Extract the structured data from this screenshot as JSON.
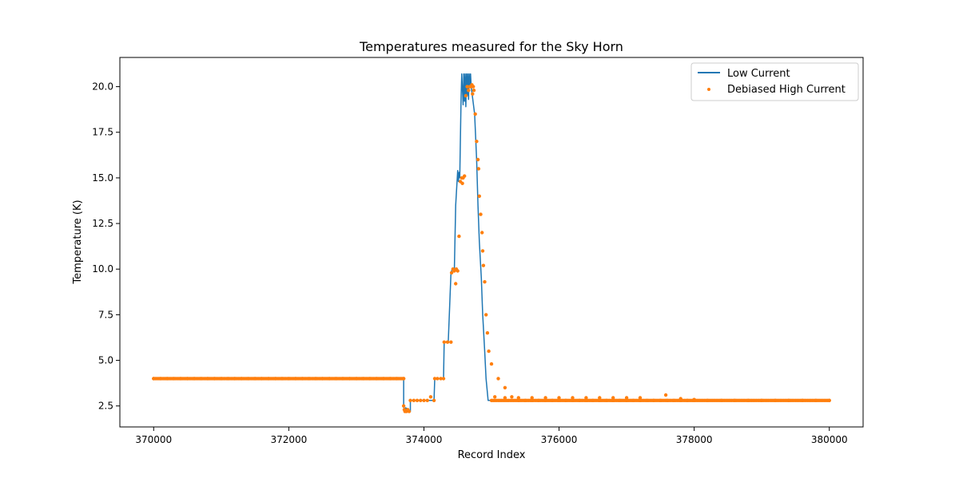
{
  "chart_data": {
    "type": "line",
    "title": "Temperatures measured for the Sky Horn",
    "xlabel": "Record Index",
    "ylabel": "Temperature (K)",
    "xlim": [
      369500,
      380500
    ],
    "ylim": [
      1.35,
      21.6
    ],
    "x_ticks": [
      370000,
      372000,
      374000,
      376000,
      378000,
      380000
    ],
    "x_tick_labels": [
      "370000",
      "372000",
      "374000",
      "376000",
      "378000",
      "380000"
    ],
    "y_ticks": [
      2.5,
      5.0,
      7.5,
      10.0,
      12.5,
      15.0,
      17.5,
      20.0
    ],
    "y_tick_labels": [
      "2.5",
      "5.0",
      "7.5",
      "10.0",
      "12.5",
      "15.0",
      "17.5",
      "20.0"
    ],
    "grid": false,
    "legend_position": "top-right",
    "series": [
      {
        "name": "Low Current",
        "style": "line",
        "color": "#1f77b4",
        "x": [
          370000,
          373700,
          373700,
          373720,
          373730,
          373800,
          373800,
          374000,
          374150,
          374160,
          374290,
          374300,
          374340,
          374360,
          374400,
          374420,
          374450,
          374470,
          374500,
          374510,
          374520,
          374530,
          374550,
          374560,
          374580,
          374590,
          374600,
          374610,
          374620,
          374630,
          374640,
          374650,
          374660,
          374670,
          374680,
          374690,
          374700,
          374700,
          374750,
          374780,
          374800,
          374820,
          374850,
          374870,
          374900,
          374920,
          374950,
          375000,
          376000,
          377000,
          378000,
          379000,
          380000
        ],
        "y": [
          4.0,
          4.0,
          2.5,
          2.2,
          2.4,
          2.2,
          2.8,
          2.8,
          2.8,
          4.0,
          4.0,
          6.0,
          6.0,
          6.0,
          9.8,
          10.0,
          9.9,
          13.5,
          15.4,
          14.8,
          15.3,
          15.0,
          19.5,
          20.7,
          19.0,
          20.7,
          19.2,
          20.7,
          18.9,
          20.7,
          19.5,
          20.7,
          19.3,
          20.7,
          20.0,
          20.7,
          20.0,
          20.0,
          18.5,
          16.0,
          13.5,
          11.5,
          9.5,
          7.5,
          5.5,
          4.0,
          2.8,
          2.8,
          2.8,
          2.8,
          2.8,
          2.8,
          2.8
        ]
      },
      {
        "name": "Debiased High Current",
        "style": "scatter",
        "color": "#ff7f0e",
        "x": [
          370000,
          370100,
          370200,
          370300,
          370400,
          370500,
          370600,
          370700,
          370800,
          370900,
          371000,
          371100,
          371200,
          371300,
          371400,
          371500,
          371600,
          371700,
          371800,
          371900,
          372000,
          372100,
          372200,
          372300,
          372400,
          372500,
          372600,
          372700,
          372800,
          372900,
          373000,
          373100,
          373200,
          373300,
          373400,
          373500,
          373600,
          373700,
          373700,
          373710,
          373720,
          373740,
          373760,
          373780,
          373800,
          373850,
          373900,
          373950,
          374000,
          374050,
          374100,
          374150,
          374160,
          374200,
          374250,
          374290,
          374300,
          374350,
          374400,
          374410,
          374430,
          374450,
          374470,
          374480,
          374500,
          374520,
          374540,
          374560,
          374570,
          374580,
          374600,
          374620,
          374640,
          374660,
          374680,
          374700,
          374710,
          374720,
          374730,
          374740,
          374760,
          374780,
          374800,
          374810,
          374820,
          374840,
          374860,
          374870,
          374880,
          374900,
          374920,
          374940,
          374960,
          375000,
          375100,
          375200,
          375300,
          375400,
          375500,
          375600,
          375700,
          375800,
          375900,
          376000,
          376100,
          376200,
          376300,
          376400,
          376500,
          376600,
          376700,
          376800,
          376900,
          377000,
          377100,
          377200,
          377300,
          377400,
          377500,
          377600,
          377700,
          377800,
          377900,
          378000,
          378200,
          378400,
          378600,
          378800,
          379000,
          379200,
          379400,
          379600,
          379800,
          380000,
          375050,
          375200,
          375400,
          375600,
          375800,
          376000,
          376200,
          376400,
          376600,
          376800,
          377000,
          377200,
          377580,
          377800,
          378000
        ],
        "y": [
          4.0,
          4.0,
          4.0,
          4.0,
          4.0,
          4.0,
          4.0,
          4.0,
          4.0,
          4.0,
          4.0,
          4.0,
          4.0,
          4.0,
          4.0,
          4.0,
          4.0,
          4.0,
          4.0,
          4.0,
          4.0,
          4.0,
          4.0,
          4.0,
          4.0,
          4.0,
          4.0,
          4.0,
          4.0,
          4.0,
          4.0,
          4.0,
          4.0,
          4.0,
          4.0,
          4.0,
          4.0,
          4.0,
          2.5,
          2.3,
          2.2,
          2.2,
          2.3,
          2.2,
          2.8,
          2.8,
          2.8,
          2.8,
          2.8,
          2.8,
          3.0,
          2.8,
          4.0,
          4.0,
          4.0,
          4.0,
          6.0,
          6.0,
          6.0,
          9.8,
          10.0,
          9.9,
          9.2,
          10.0,
          9.9,
          11.8,
          14.8,
          15.0,
          14.7,
          15.0,
          15.1,
          19.5,
          20.0,
          19.8,
          20.0,
          20.0,
          20.1,
          19.6,
          20.0,
          19.8,
          18.5,
          17.0,
          16.0,
          15.5,
          14.0,
          13.0,
          12.0,
          11.0,
          10.2,
          9.3,
          7.5,
          6.5,
          5.5,
          4.8,
          4.0,
          3.5,
          3.0,
          2.8,
          2.8,
          2.8,
          2.8,
          2.8,
          2.8,
          2.8,
          2.8,
          2.8,
          2.8,
          2.8,
          2.8,
          2.8,
          2.8,
          2.8,
          2.8,
          2.8,
          2.8,
          2.8,
          2.8,
          2.8,
          2.8,
          2.8,
          2.8,
          2.8,
          2.8,
          2.8,
          2.8,
          2.8,
          2.8,
          2.8,
          2.8,
          2.8,
          2.8,
          2.8,
          2.8,
          2.8,
          3.0,
          2.95,
          2.95,
          2.95,
          2.95,
          2.95,
          2.95,
          2.95,
          2.95,
          2.95,
          2.95,
          2.95,
          3.1,
          2.9,
          2.85
        ]
      }
    ]
  }
}
